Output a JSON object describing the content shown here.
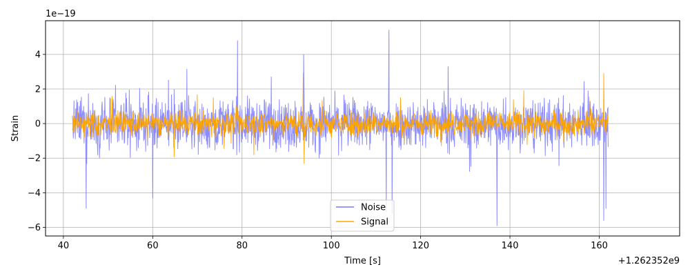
{
  "chart_data": {
    "type": "line",
    "title": "",
    "xlabel": "Time [s]",
    "ylabel": "Strain",
    "x_offset_label": "+1.262352e9",
    "y_scale_label": "1e−19",
    "xlim": [
      36,
      178
    ],
    "ylim": [
      -6.5,
      5.95
    ],
    "x_ticks": [
      40,
      60,
      80,
      100,
      120,
      140,
      160
    ],
    "y_ticks": [
      -6,
      -4,
      -2,
      0,
      2,
      4
    ],
    "x_tick_labels": [
      "40",
      "60",
      "80",
      "100",
      "120",
      "140",
      "160"
    ],
    "y_tick_labels": [
      "−6",
      "−4",
      "−2",
      "0",
      "2",
      "4"
    ],
    "grid": true,
    "legend_position": "bottom-center",
    "series": [
      {
        "name": "Noise",
        "color": "#7777ff",
        "x_range": [
          42,
          162
        ],
        "typical_amplitude": 1.0,
        "envelope": [
          -6.0,
          5.4
        ],
        "notable_extremes": [
          {
            "x": 45.1,
            "y": -4.9
          },
          {
            "x": 60.0,
            "y": -4.3
          },
          {
            "x": 79.0,
            "y": 4.8
          },
          {
            "x": 93.8,
            "y": 4.0
          },
          {
            "x": 112.3,
            "y": -5.1
          },
          {
            "x": 112.9,
            "y": 5.4
          },
          {
            "x": 113.6,
            "y": -5.2
          },
          {
            "x": 137.1,
            "y": -5.9
          },
          {
            "x": 161.0,
            "y": -5.6
          },
          {
            "x": 161.5,
            "y": -4.9
          }
        ]
      },
      {
        "name": "Signal",
        "color": "#ffa500",
        "x_range": [
          42,
          162
        ],
        "typical_amplitude": 0.5,
        "envelope": [
          -2.3,
          2.9
        ],
        "notable_extremes": [
          {
            "x": 93.7,
            "y": 2.9
          },
          {
            "x": 93.9,
            "y": -2.3
          },
          {
            "x": 161.0,
            "y": 2.9
          }
        ]
      }
    ]
  }
}
